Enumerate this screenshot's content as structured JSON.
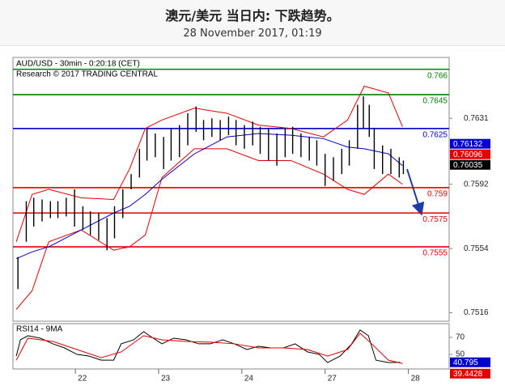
{
  "header": {
    "title": "澳元/美元 当日内: 下跌趋势。",
    "subtitle": "28 November 2017, 01:19"
  },
  "chart_data": [
    {
      "type": "ohlc",
      "title": "AUD/USD - 30min - 0:20:18 (CET)",
      "subtitle": "Research © 2017 TRADING CENTRAL",
      "color": "#000000",
      "xlim": [
        0.25,
        5.49
      ],
      "ylim": [
        0.7511,
        0.7667
      ],
      "yticks": [
        0.7516,
        0.7554,
        0.7592,
        0.7631
      ],
      "x": [
        0.31,
        0.41,
        0.5,
        0.6,
        0.7,
        0.79,
        0.89,
        0.99,
        1.09,
        1.18,
        1.28,
        1.38,
        1.47,
        1.57,
        1.67,
        1.77,
        1.86,
        1.96,
        2.06,
        2.15,
        2.25,
        2.35,
        2.45,
        2.54,
        2.64,
        2.74,
        2.84,
        2.93,
        3.03,
        3.13,
        3.22,
        3.32,
        3.42,
        3.52,
        3.61,
        3.71,
        3.81,
        3.9,
        4.0,
        4.1,
        4.2,
        4.29,
        4.39,
        4.46,
        4.53,
        4.59,
        4.69,
        4.79,
        4.89,
        4.94
      ],
      "high": [
        0.7549,
        0.7582,
        0.7584,
        0.7583,
        0.7582,
        0.7582,
        0.7584,
        0.7589,
        0.7579,
        0.7576,
        0.7575,
        0.7572,
        0.7579,
        0.7589,
        0.7598,
        0.7613,
        0.7625,
        0.7622,
        0.762,
        0.7625,
        0.7627,
        0.7634,
        0.7638,
        0.763,
        0.7631,
        0.763,
        0.7632,
        0.763,
        0.7627,
        0.7629,
        0.7626,
        0.7625,
        0.7622,
        0.7625,
        0.7626,
        0.7622,
        0.762,
        0.7618,
        0.761,
        0.7608,
        0.7613,
        0.7618,
        0.7639,
        0.7644,
        0.7639,
        0.7625,
        0.7615,
        0.7613,
        0.7608,
        0.7606
      ],
      "low": [
        0.753,
        0.7558,
        0.7567,
        0.757,
        0.7572,
        0.7572,
        0.7573,
        0.7567,
        0.7565,
        0.7562,
        0.7559,
        0.7553,
        0.756,
        0.7572,
        0.7589,
        0.7596,
        0.7606,
        0.7608,
        0.7601,
        0.7606,
        0.7608,
        0.7615,
        0.7623,
        0.7618,
        0.762,
        0.7618,
        0.7621,
        0.7615,
        0.7613,
        0.7615,
        0.761,
        0.7606,
        0.7603,
        0.7608,
        0.761,
        0.7608,
        0.7606,
        0.7603,
        0.7591,
        0.7594,
        0.7598,
        0.7603,
        0.7613,
        0.7625,
        0.762,
        0.7601,
        0.7598,
        0.7598,
        0.7596,
        0.7598
      ],
      "bands": {
        "x": [
          0.29,
          0.48,
          0.68,
          1.07,
          1.46,
          1.65,
          1.84,
          2.04,
          2.43,
          2.82,
          3.2,
          3.59,
          3.98,
          4.27,
          4.47,
          4.76,
          4.93
        ],
        "upper": [
          0.7558,
          0.7586,
          0.7589,
          0.7584,
          0.7583,
          0.7601,
          0.7625,
          0.763,
          0.7637,
          0.7634,
          0.7627,
          0.7625,
          0.762,
          0.763,
          0.765,
          0.7646,
          0.7626
        ],
        "lower": [
          0.7518,
          0.7529,
          0.7558,
          0.7565,
          0.7553,
          0.7555,
          0.7562,
          0.7596,
          0.7613,
          0.7613,
          0.7606,
          0.7606,
          0.7598,
          0.7589,
          0.7586,
          0.7598,
          0.7592
        ],
        "middle": [
          0.7548,
          0.7552,
          0.7555,
          0.7565,
          0.7575,
          0.7579,
          0.7586,
          0.7595,
          0.761,
          0.762,
          0.7622,
          0.7621,
          0.7619,
          0.7614,
          0.7613,
          0.761,
          0.7603
        ],
        "band_color": "#e00000",
        "middle_color": "#0000cc"
      },
      "levels": [
        {
          "value": 0.766,
          "color": "#008000"
        },
        {
          "value": 0.7645,
          "color": "#008000"
        },
        {
          "value": 0.7625,
          "color": "#0000cc"
        },
        {
          "value": 0.759,
          "color": "#e00000"
        },
        {
          "value": 0.7575,
          "color": "#e00000"
        },
        {
          "value": 0.7555,
          "color": "#e00000"
        }
      ],
      "price_tags": [
        {
          "value": 0.76132,
          "color": "#0000cc"
        },
        {
          "value": 0.76096,
          "color": "#e00000"
        },
        {
          "value": 0.76035,
          "color": "#000000"
        }
      ]
    },
    {
      "type": "line",
      "title": "RSI14 - 9MA",
      "xlim": [
        0.25,
        5.49
      ],
      "ylim": [
        33,
        86
      ],
      "yticks": [
        50,
        70
      ],
      "xticks": [
        {
          "value": 1,
          "label": "22"
        },
        {
          "value": 2,
          "label": "23"
        },
        {
          "value": 3,
          "label": "24"
        },
        {
          "value": 4,
          "label": "27"
        },
        {
          "value": 5,
          "label": "28"
        }
      ],
      "lines": [
        {
          "color": "#000000",
          "x": [
            0.29,
            0.34,
            0.43,
            0.58,
            0.73,
            0.87,
            1.02,
            1.16,
            1.31,
            1.46,
            1.55,
            1.7,
            1.82,
            1.89,
            2.04,
            2.18,
            2.33,
            2.48,
            2.62,
            2.77,
            2.91,
            3.06,
            3.2,
            3.35,
            3.5,
            3.64,
            3.79,
            3.93,
            4.03,
            4.18,
            4.32,
            4.42,
            4.52,
            4.61,
            4.76,
            4.9
          ],
          "values": [
            48.1,
            67.1,
            71.9,
            69.0,
            62.4,
            57.6,
            50.0,
            48.1,
            43.3,
            43.3,
            62.4,
            67.1,
            76.7,
            71.9,
            62.4,
            69.0,
            67.1,
            62.4,
            62.4,
            67.1,
            62.4,
            55.7,
            59.5,
            57.6,
            57.6,
            62.4,
            52.9,
            50.0,
            40.5,
            48.1,
            62.4,
            78.6,
            71.9,
            43.3,
            40.5,
            40.8
          ]
        },
        {
          "color": "#e00000",
          "x": [
            0.29,
            0.43,
            0.73,
            1.02,
            1.31,
            1.55,
            1.82,
            2.04,
            2.33,
            2.62,
            2.91,
            3.2,
            3.5,
            3.79,
            4.03,
            4.27,
            4.42,
            4.56,
            4.76,
            4.93
          ],
          "values": [
            43.3,
            69.0,
            65.2,
            55.7,
            46.2,
            52.9,
            71.9,
            67.1,
            65.2,
            64.3,
            62.4,
            57.6,
            57.6,
            55.7,
            48.1,
            55.7,
            74.8,
            62.4,
            43.3,
            39.4
          ]
        }
      ],
      "value_tags": [
        {
          "value": 40.795,
          "color": "#0000cc"
        },
        {
          "value": 39.4428,
          "color": "#e00000"
        }
      ]
    }
  ]
}
